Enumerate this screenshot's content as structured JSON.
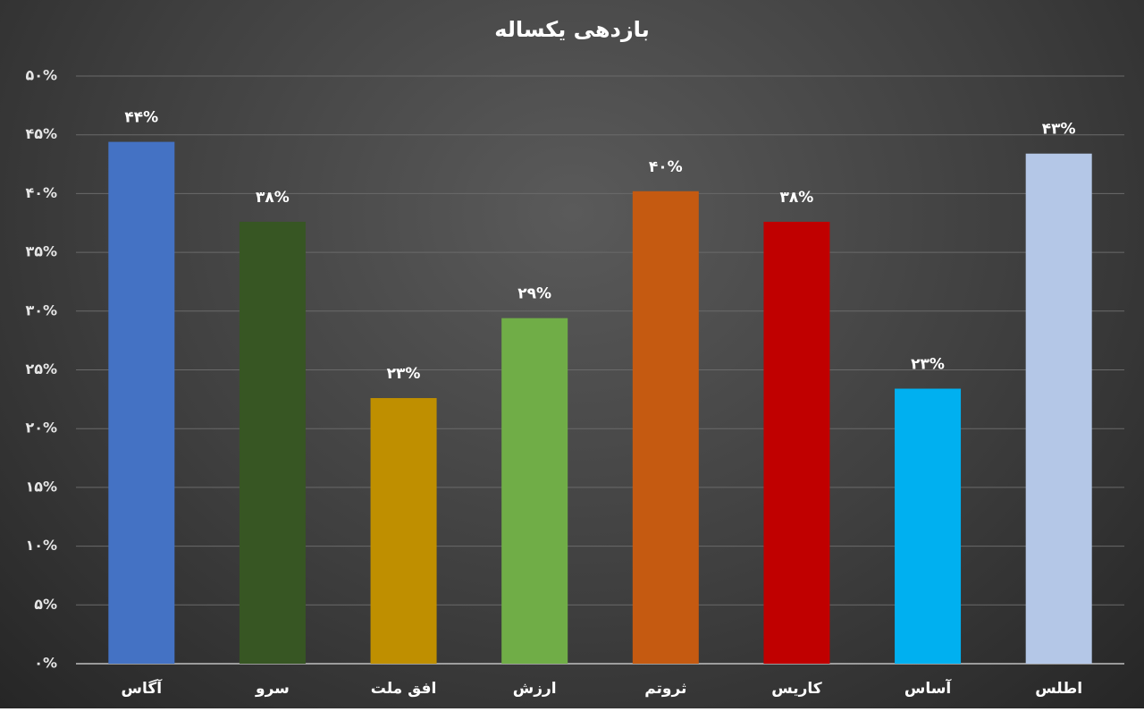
{
  "chart_data": {
    "type": "bar",
    "title": "بازدهی یکساله",
    "categories": [
      "آگاس",
      "سرو",
      "افق ملت",
      "ارزش",
      "ثروتم",
      "کاریس",
      "آساس",
      "اطلس"
    ],
    "values": [
      44.4,
      37.6,
      22.6,
      29.4,
      40.2,
      37.6,
      23.4,
      43.4
    ],
    "value_labels": [
      "۴۴%",
      "۳۸%",
      "۲۳%",
      "۲۹%",
      "۴۰%",
      "۳۸%",
      "۲۳%",
      "۴۳%"
    ],
    "colors": [
      "#4472c4",
      "#375623",
      "#bf8f00",
      "#70ad47",
      "#c55a11",
      "#c00000",
      "#00b0f0",
      "#b4c7e7"
    ],
    "ylim": [
      0,
      50
    ],
    "yticks": [
      {
        "value": 0,
        "label": "۰%"
      },
      {
        "value": 5,
        "label": "۵%"
      },
      {
        "value": 10,
        "label": "۱۰%"
      },
      {
        "value": 15,
        "label": "۱۵%"
      },
      {
        "value": 20,
        "label": "۲۰%"
      },
      {
        "value": 25,
        "label": "۲۵%"
      },
      {
        "value": 30,
        "label": "۳۰%"
      },
      {
        "value": 35,
        "label": "۳۵%"
      },
      {
        "value": 40,
        "label": "۴۰%"
      },
      {
        "value": 45,
        "label": "۴۵%"
      },
      {
        "value": 50,
        "label": "۵۰%"
      }
    ],
    "grid": true
  }
}
